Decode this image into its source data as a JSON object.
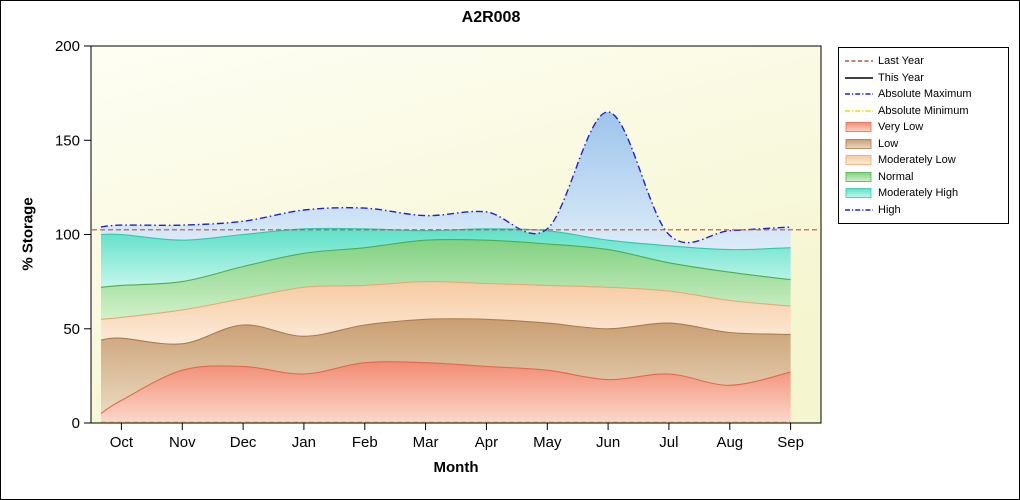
{
  "chart_data": {
    "type": "area",
    "title": "A2R008",
    "xlabel": "Month",
    "ylabel": "% Storage",
    "ylim": [
      0,
      200
    ],
    "y_ticks": [
      0,
      50,
      100,
      150,
      200
    ],
    "categories": [
      "Oct",
      "Nov",
      "Dec",
      "Jan",
      "Feb",
      "Mar",
      "Apr",
      "May",
      "Jun",
      "Jul",
      "Aug",
      "Sep"
    ],
    "bands": [
      {
        "name": "Very Low",
        "edge": 5,
        "values": [
          12,
          28,
          30,
          26,
          32,
          32,
          30,
          28,
          23,
          26,
          20,
          27
        ],
        "fill_top": "#F28C72",
        "fill_bottom": "#FBD8CC",
        "line": "#E4684F"
      },
      {
        "name": "Low",
        "edge": 44,
        "values": [
          45,
          42,
          52,
          46,
          52,
          55,
          55,
          53,
          50,
          53,
          48,
          47
        ],
        "fill_top": "#C99E72",
        "fill_bottom": "#EBD9C0",
        "line": "#A97B4F"
      },
      {
        "name": "Moderately Low",
        "edge": 55,
        "values": [
          56,
          60,
          66,
          72,
          73,
          75,
          74,
          73,
          72,
          70,
          65,
          62
        ],
        "fill_top": "#F6CBA2",
        "fill_bottom": "#FDEBDA",
        "line": "#E8A876"
      },
      {
        "name": "Normal",
        "edge": 72,
        "values": [
          73,
          75,
          83,
          90,
          93,
          97,
          97,
          95,
          92,
          85,
          80,
          76
        ],
        "fill_top": "#82D082",
        "fill_bottom": "#D2F1CA",
        "line": "#4DAE4D"
      },
      {
        "name": "Moderately High",
        "edge": 100,
        "values": [
          100,
          97,
          100,
          103,
          103,
          102,
          103,
          102,
          97,
          94,
          92,
          93
        ],
        "fill_top": "#5CE0C8",
        "fill_bottom": "#C6F6EC",
        "line": "#2EC8AD"
      },
      {
        "name": "High",
        "edge": 104,
        "values": [
          105,
          105,
          107,
          113,
          114,
          110,
          112,
          103,
          165,
          100,
          102,
          104
        ],
        "fill_top": "#9CC4EC",
        "fill_bottom": "#DEECF9",
        "line": "#2222CC",
        "line_style": "dashdot"
      }
    ],
    "reference_lines": [
      {
        "name": "Last Year",
        "value": 102.5,
        "color": "#B4573C",
        "style": "dash",
        "full_width": true
      },
      {
        "name": "Absolute Minimum",
        "value": 0.7,
        "color": "#EEDC00",
        "style": "dash",
        "full_width": false
      }
    ]
  },
  "legend": {
    "items": [
      {
        "label": "Last Year",
        "symbol": "line",
        "style": "dash",
        "color": "#B4573C"
      },
      {
        "label": "This Year",
        "symbol": "line",
        "style": "solid",
        "color": "#000000"
      },
      {
        "label": "Absolute Maximum",
        "symbol": "line",
        "style": "dashdot",
        "color": "#2222CC"
      },
      {
        "label": "Absolute Minimum",
        "symbol": "line",
        "style": "dashdot",
        "color": "#EEDC00"
      },
      {
        "label": "Very Low",
        "symbol": "box",
        "fill_top": "#F28C72",
        "fill_bottom": "#FBD8CC",
        "border": "#E4684F"
      },
      {
        "label": "Low",
        "symbol": "box",
        "fill_top": "#C99E72",
        "fill_bottom": "#EBD9C0",
        "border": "#A97B4F"
      },
      {
        "label": "Moderately Low",
        "symbol": "box",
        "fill_top": "#F6CBA2",
        "fill_bottom": "#FDEBDA",
        "border": "#E8A876"
      },
      {
        "label": "Normal",
        "symbol": "box",
        "fill_top": "#82D082",
        "fill_bottom": "#D2F1CA",
        "border": "#4DAE4D"
      },
      {
        "label": "Moderately High",
        "symbol": "box",
        "fill_top": "#5CE0C8",
        "fill_bottom": "#C6F6EC",
        "border": "#2EC8AD"
      },
      {
        "label": "High",
        "symbol": "line",
        "style": "dashdot",
        "color": "#2222CC"
      }
    ]
  },
  "plot_style": {
    "bg_top": "#FEFEF4",
    "bg_bottom": "#F5F5CF"
  }
}
